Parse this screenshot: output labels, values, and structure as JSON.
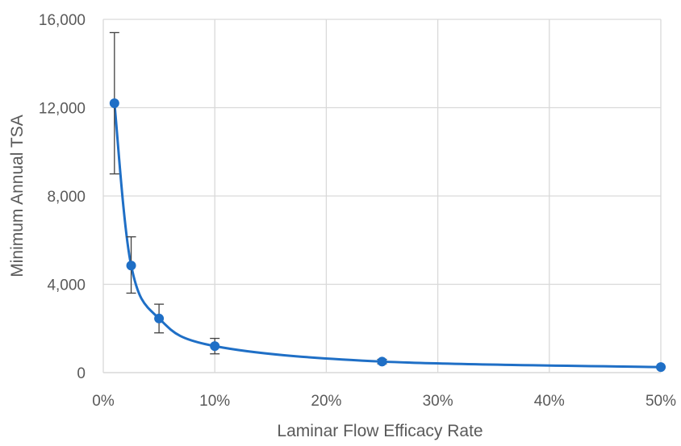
{
  "chart_data": {
    "type": "scatter",
    "title": "",
    "xlabel": "Laminar Flow Efficacy Rate",
    "ylabel": "Minimum Annual TSA",
    "xlim": [
      0,
      0.5
    ],
    "ylim": [
      0,
      16000
    ],
    "x_ticks": [
      {
        "value": 0.0,
        "label": "0%"
      },
      {
        "value": 0.1,
        "label": "10%"
      },
      {
        "value": 0.2,
        "label": "20%"
      },
      {
        "value": 0.3,
        "label": "30%"
      },
      {
        "value": 0.4,
        "label": "40%"
      },
      {
        "value": 0.5,
        "label": "50%"
      }
    ],
    "y_ticks": [
      {
        "value": 0,
        "label": "0"
      },
      {
        "value": 4000,
        "label": "4,000"
      },
      {
        "value": 8000,
        "label": "8,000"
      },
      {
        "value": 12000,
        "label": "12,000"
      },
      {
        "value": 16000,
        "label": "16,000"
      }
    ],
    "grid": true,
    "line_smoothed": true,
    "series": [
      {
        "x": [
          0.01,
          0.025,
          0.05,
          0.1,
          0.25,
          0.5
        ],
        "y": [
          12200,
          4850,
          2450,
          1200,
          500,
          250
        ],
        "y_err_low": [
          9000,
          3600,
          1800,
          850,
          400,
          230
        ],
        "y_err_high": [
          15400,
          6150,
          3100,
          1550,
          600,
          270
        ]
      }
    ],
    "colors": {
      "series": "#1f6fc6",
      "error_bar": "#404040",
      "grid": "#d9d9d9",
      "text": "#595959"
    }
  }
}
